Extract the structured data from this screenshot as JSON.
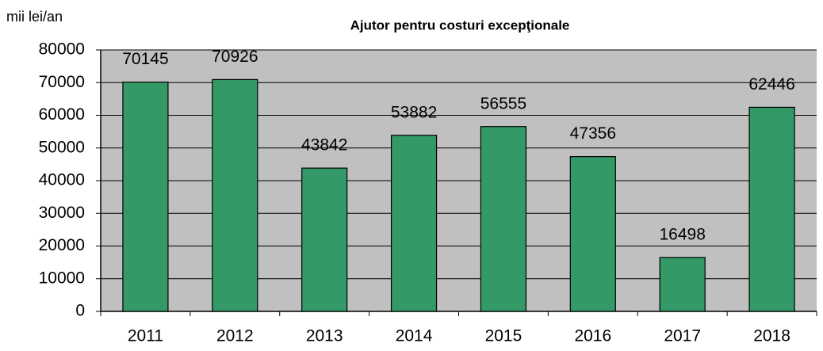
{
  "chart_data": {
    "type": "bar",
    "title": "Ajutor pentru costuri excepţionale",
    "y_label": "mii lei/an",
    "categories": [
      "2011",
      "2012",
      "2013",
      "2014",
      "2015",
      "2016",
      "2017",
      "2018"
    ],
    "values": [
      70145,
      70926,
      43842,
      53882,
      56555,
      47356,
      16498,
      62446
    ],
    "color": "#339966",
    "background": "#c0c0c0",
    "ylim": [
      0,
      80000
    ],
    "yticks": [
      0,
      10000,
      20000,
      30000,
      40000,
      50000,
      60000,
      70000,
      80000
    ],
    "grid": true
  }
}
